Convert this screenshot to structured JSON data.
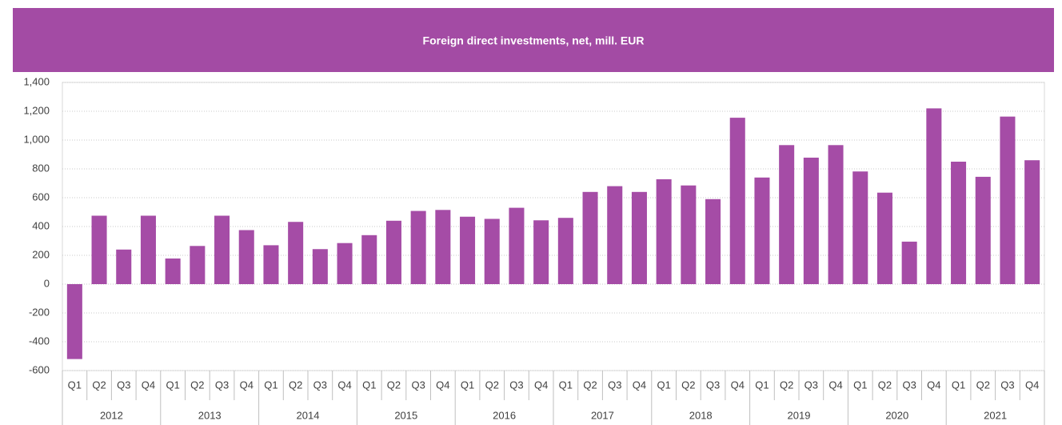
{
  "chart_data": {
    "type": "bar",
    "title": "Foreign direct investments, net, mill. EUR",
    "categories": [
      "Q1",
      "Q2",
      "Q3",
      "Q4",
      "Q1",
      "Q2",
      "Q3",
      "Q4",
      "Q1",
      "Q2",
      "Q3",
      "Q4",
      "Q1",
      "Q2",
      "Q3",
      "Q4",
      "Q1",
      "Q2",
      "Q3",
      "Q4",
      "Q1",
      "Q2",
      "Q3",
      "Q4",
      "Q1",
      "Q2",
      "Q3",
      "Q4",
      "Q1",
      "Q2",
      "Q3",
      "Q4",
      "Q1",
      "Q2",
      "Q3",
      "Q4",
      "Q1",
      "Q2",
      "Q3",
      "Q4"
    ],
    "groups": [
      "2012",
      "2013",
      "2014",
      "2015",
      "2016",
      "2017",
      "2018",
      "2019",
      "2020",
      "2021"
    ],
    "values": [
      -520,
      475,
      240,
      475,
      178,
      265,
      475,
      375,
      270,
      432,
      243,
      285,
      340,
      440,
      508,
      515,
      468,
      453,
      530,
      443,
      460,
      640,
      680,
      640,
      728,
      685,
      590,
      1155,
      740,
      965,
      878,
      965,
      782,
      635,
      295,
      1220,
      850,
      745,
      1163,
      860
    ],
    "color": "#a54ca6",
    "ylim": [
      -600,
      1400
    ],
    "yticks": [
      -600,
      -400,
      -200,
      0,
      200,
      400,
      600,
      800,
      {
        "value": 1000,
        "label": "1,000"
      },
      {
        "value": 1200,
        "label": "1,200"
      },
      {
        "value": 1400,
        "label": "1,400"
      }
    ],
    "grid": true
  }
}
